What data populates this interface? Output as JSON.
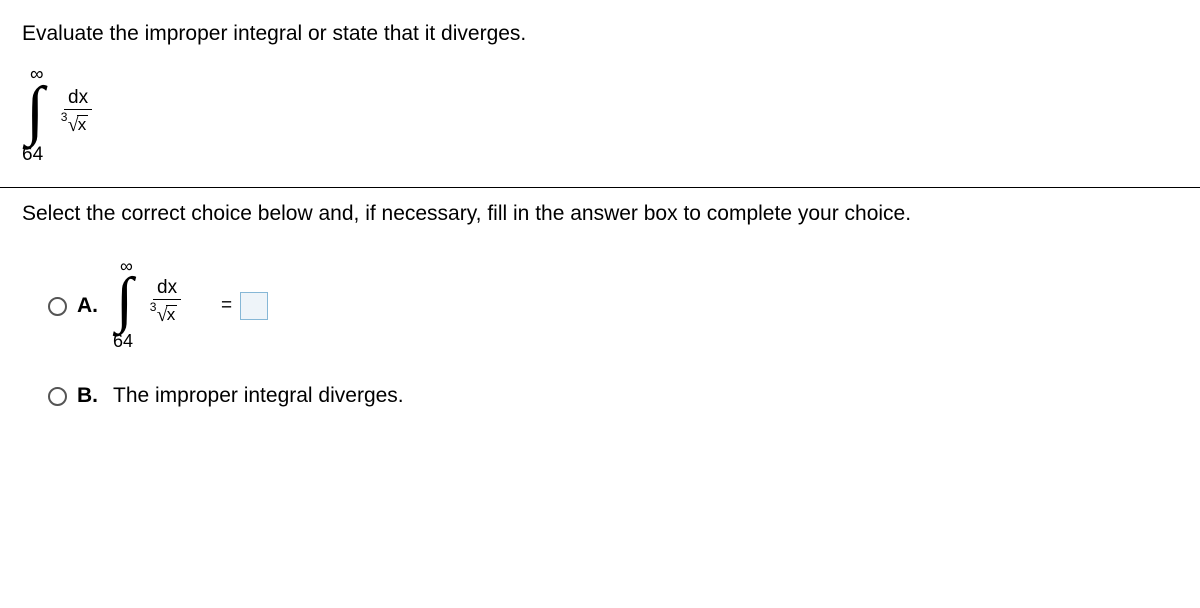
{
  "prompt": "Evaluate the improper integral or state that it diverges.",
  "integral": {
    "upper_limit": "∞",
    "lower_limit": "64",
    "numerator": "dx",
    "root_index": "3",
    "radicand": "x"
  },
  "instruction": "Select the correct choice below and, if necessary, fill in the answer box to complete your choice.",
  "choices": {
    "a": {
      "label": "A.",
      "equals": "=",
      "answer_value": ""
    },
    "b": {
      "label": "B.",
      "text": "The improper integral diverges."
    }
  },
  "colors": {
    "text": "#000000",
    "divider": "#000000",
    "radio_border": "#555555",
    "answer_box_border": "#86b7d6",
    "answer_box_bg": "#eef4f9",
    "background": "#ffffff"
  }
}
